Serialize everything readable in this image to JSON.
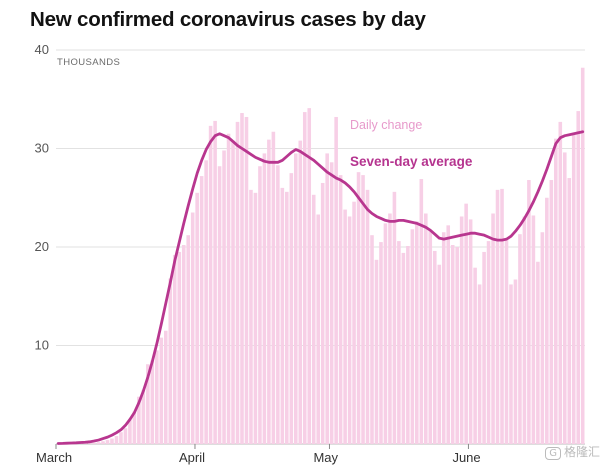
{
  "chart_data": {
    "type": "bar",
    "title": "New confirmed coronavirus cases by day",
    "ylabel": "THOUSANDS",
    "ylim": [
      0,
      40
    ],
    "yticks": [
      10,
      20,
      30,
      40
    ],
    "xtick_labels": [
      "March",
      "April",
      "May",
      "June"
    ],
    "xtick_index": [
      0,
      31,
      61,
      92
    ],
    "series": [
      {
        "name": "Daily change",
        "type": "bar",
        "color": "#f7cfe6",
        "values": [
          0.02,
          0.03,
          0.03,
          0.04,
          0.05,
          0.06,
          0.08,
          0.1,
          0.12,
          0.18,
          0.28,
          0.4,
          0.55,
          0.8,
          1.2,
          1.6,
          2.5,
          3.3,
          4.8,
          5.5,
          8.1,
          8.5,
          9.5,
          10.8,
          11.5,
          16.8,
          19.2,
          19.5,
          20.2,
          21.2,
          23.5,
          25.5,
          27.2,
          28.8,
          32.3,
          32.8,
          28.2,
          29.8,
          31.5,
          30.8,
          32.7,
          33.6,
          33.2,
          25.8,
          25.5,
          28.2,
          29.5,
          30.9,
          31.7,
          28.3,
          26,
          25.6,
          27.5,
          29.5,
          30.8,
          33.7,
          34.1,
          25.3,
          23.3,
          26.5,
          29.5,
          28.6,
          33.2,
          27.3,
          23.8,
          23.1,
          24.6,
          27.6,
          27.3,
          25.8,
          21.2,
          18.7,
          20.5,
          22.4,
          23.4,
          25.6,
          20.6,
          19.4,
          20.1,
          21.8,
          22.6,
          26.9,
          23.4,
          21.7,
          19.6,
          18.2,
          21.5,
          22.2,
          20.2,
          20,
          23.1,
          24.4,
          22.8,
          17.9,
          16.2,
          19.5,
          20.6,
          23.4,
          25.8,
          25.9,
          20.7,
          16.2,
          16.7,
          21.3,
          23.1,
          26.8,
          23.2,
          18.5,
          21.5,
          25,
          26.8,
          31,
          32.7,
          29.6,
          27,
          31.6,
          33.8,
          38.2
        ]
      },
      {
        "name": "Seven-day average",
        "type": "line",
        "color": "#b8368f",
        "values": [
          0.05,
          0.06,
          0.08,
          0.1,
          0.12,
          0.15,
          0.18,
          0.22,
          0.3,
          0.4,
          0.55,
          0.7,
          0.9,
          1.15,
          1.45,
          1.9,
          2.5,
          3.2,
          4.2,
          5.4,
          6.8,
          8.4,
          10.2,
          12.2,
          14.3,
          16.4,
          18.6,
          20.5,
          22.4,
          24.2,
          25.9,
          27.5,
          28.8,
          29.9,
          30.7,
          31.3,
          31.5,
          31.3,
          31.1,
          30.7,
          30.3,
          30,
          29.7,
          29.4,
          29.1,
          28.9,
          28.7,
          28.6,
          28.6,
          28.6,
          28.8,
          29.2,
          29.6,
          29.9,
          29.7,
          29.4,
          29.1,
          28.8,
          28.4,
          28,
          27.6,
          27.3,
          27,
          26.8,
          26.5,
          26.1,
          25.6,
          25,
          24.4,
          23.8,
          23.4,
          23.1,
          22.9,
          22.7,
          22.6,
          22.6,
          22.7,
          22.7,
          22.6,
          22.5,
          22.4,
          22.2,
          22,
          21.7,
          21.3,
          20.9,
          20.8,
          20.9,
          21,
          21.1,
          21.2,
          21.3,
          21.4,
          21.4,
          21.3,
          21.2,
          21,
          20.8,
          20.7,
          20.7,
          20.8,
          21.1,
          21.6,
          22.2,
          22.9,
          23.7,
          24.6,
          25.6,
          26.7,
          27.9,
          29.2,
          30.5,
          31.1,
          31.3,
          31.4,
          31.5,
          31.6,
          31.7
        ]
      }
    ],
    "annotations": [
      {
        "text": "Daily change"
      },
      {
        "text": "Seven-day average"
      }
    ]
  },
  "watermark": "格隆汇"
}
